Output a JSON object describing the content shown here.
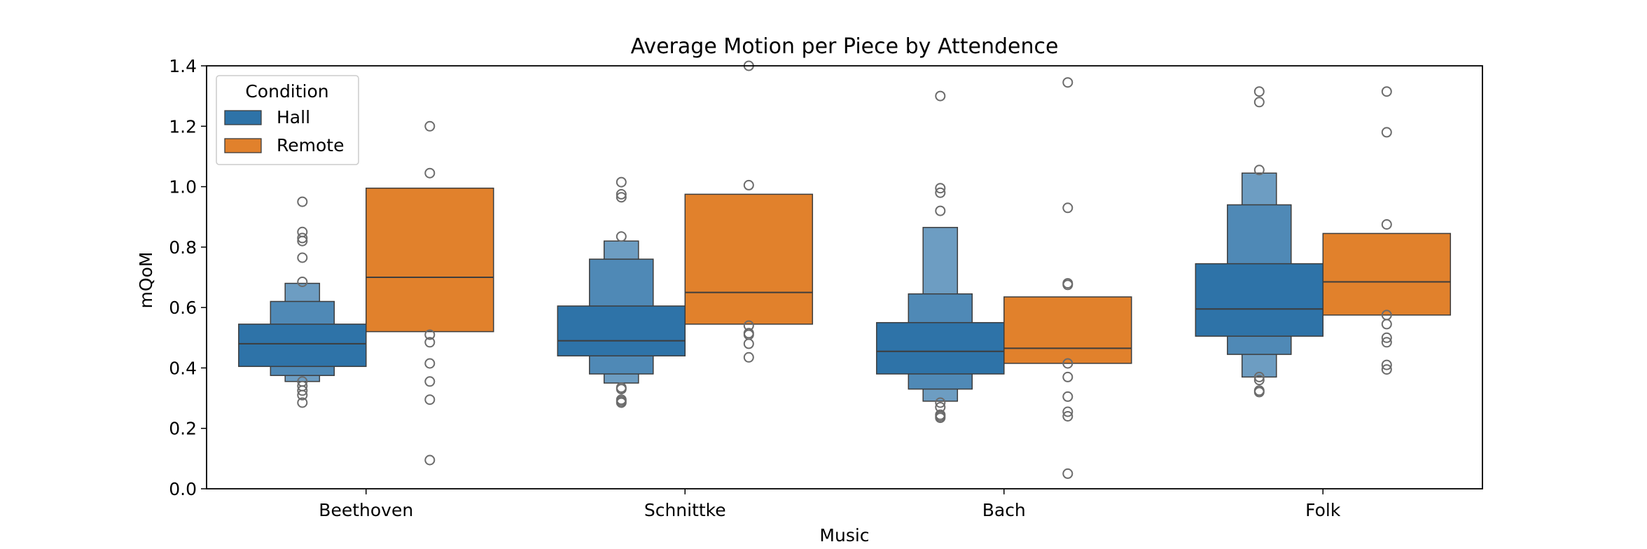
{
  "chart_data": {
    "type": "boxenplot",
    "title": "Average Motion per Piece by Attendence",
    "xlabel": "Music",
    "ylabel": "mQoM",
    "categories": [
      "Beethoven",
      "Schnittke",
      "Bach",
      "Folk"
    ],
    "ylim": [
      0,
      1.4
    ],
    "yticks": [
      0.0,
      0.2,
      0.4,
      0.6,
      0.8,
      1.0,
      1.2,
      1.4
    ],
    "ytick_labels": [
      "0.0",
      "0.2",
      "0.4",
      "0.6",
      "0.8",
      "1.0",
      "1.2",
      "1.4"
    ],
    "grid": false,
    "legend": {
      "title": "Condition",
      "placement": "top-left"
    },
    "series": [
      {
        "name": "Hall",
        "color": "#2e73a8",
        "groups": [
          {
            "median": 0.48,
            "levels": [
              [
                0.405,
                0.545
              ],
              [
                0.375,
                0.62
              ],
              [
                0.355,
                0.68
              ]
            ],
            "outliers": [
              0.95,
              0.85,
              0.83,
              0.82,
              0.765,
              0.685,
              0.355,
              0.34,
              0.325,
              0.31,
              0.285
            ]
          },
          {
            "median": 0.49,
            "levels": [
              [
                0.44,
                0.605
              ],
              [
                0.38,
                0.76
              ],
              [
                0.35,
                0.82
              ]
            ],
            "outliers": [
              1.015,
              0.975,
              0.965,
              0.835,
              0.335,
              0.33,
              0.295,
              0.29,
              0.285
            ]
          },
          {
            "median": 0.455,
            "levels": [
              [
                0.38,
                0.55
              ],
              [
                0.33,
                0.645
              ],
              [
                0.29,
                0.865
              ]
            ],
            "outliers": [
              1.3,
              0.995,
              0.98,
              0.92,
              0.285,
              0.27,
              0.245,
              0.24,
              0.235
            ]
          },
          {
            "median": 0.595,
            "levels": [
              [
                0.505,
                0.745
              ],
              [
                0.445,
                0.94
              ],
              [
                0.37,
                1.045
              ]
            ],
            "outliers": [
              1.315,
              1.28,
              1.055,
              0.37,
              0.36,
              0.325,
              0.32
            ]
          }
        ]
      },
      {
        "name": "Remote",
        "color": "#e1812c",
        "groups": [
          {
            "median": 0.7,
            "levels": [
              [
                0.52,
                0.995
              ]
            ],
            "outliers": [
              1.2,
              1.045,
              0.51,
              0.485,
              0.415,
              0.355,
              0.295,
              0.095
            ]
          },
          {
            "median": 0.65,
            "levels": [
              [
                0.545,
                0.975
              ]
            ],
            "outliers": [
              1.4,
              1.005,
              0.54,
              0.515,
              0.51,
              0.48,
              0.435
            ]
          },
          {
            "median": 0.465,
            "levels": [
              [
                0.415,
                0.635
              ]
            ],
            "outliers": [
              1.345,
              0.93,
              0.68,
              0.675,
              0.415,
              0.37,
              0.305,
              0.255,
              0.24,
              0.05
            ]
          },
          {
            "median": 0.685,
            "levels": [
              [
                0.575,
                0.845
              ]
            ],
            "outliers": [
              1.315,
              1.18,
              0.875,
              0.575,
              0.545,
              0.5,
              0.485,
              0.41,
              0.395
            ]
          }
        ]
      }
    ]
  }
}
